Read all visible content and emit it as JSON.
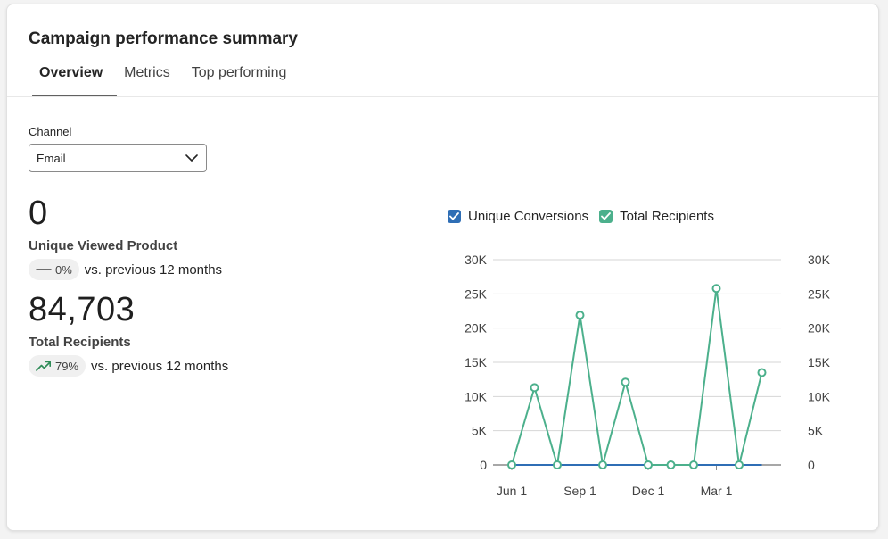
{
  "title": "Campaign performance summary",
  "tabs": [
    {
      "label": "Overview",
      "selected": true
    },
    {
      "label": "Metrics",
      "selected": false
    },
    {
      "label": "Top performing",
      "selected": false
    }
  ],
  "channel": {
    "label": "Channel",
    "value": "Email"
  },
  "kpis": [
    {
      "value": "0",
      "label": "Unique Viewed Product",
      "change": "0%",
      "trend": "flat",
      "comparison": "vs. previous 12 months"
    },
    {
      "value": "84,703",
      "label": "Total Recipients",
      "change": "79%",
      "trend": "up",
      "comparison": "vs. previous 12 months"
    }
  ],
  "legend": [
    {
      "label": "Unique Conversions",
      "checked": true,
      "color": "#2f6eb5"
    },
    {
      "label": "Total Recipients",
      "checked": true,
      "color": "#4cb08c"
    }
  ],
  "chart_data": {
    "type": "line",
    "x": [
      "2023-06-01",
      "2023-07-01",
      "2023-08-01",
      "2023-09-01",
      "2023-10-01",
      "2023-11-01",
      "2023-12-01",
      "2024-01-01",
      "2024-02-01",
      "2024-03-01",
      "2024-04-01",
      "2024-05-01"
    ],
    "x_tick_labels": [
      "Jun 1",
      "Sep 1",
      "Dec 1",
      "Mar 1"
    ],
    "y_tick_labels": [
      "0",
      "5K",
      "10K",
      "15K",
      "20K",
      "25K",
      "30K"
    ],
    "ylim": [
      0,
      30000
    ],
    "series": [
      {
        "name": "Total Recipients",
        "color": "#4cb08c",
        "values": [
          0,
          11300,
          0,
          21900,
          0,
          12100,
          0,
          0,
          0,
          25800,
          0,
          13500
        ]
      },
      {
        "name": "Unique Conversions",
        "color": "#2f6eb5",
        "values": [
          0,
          0,
          0,
          0,
          0,
          0,
          0,
          0,
          0,
          0,
          0,
          0
        ]
      }
    ],
    "grid": true,
    "legend_position": "top-left"
  }
}
